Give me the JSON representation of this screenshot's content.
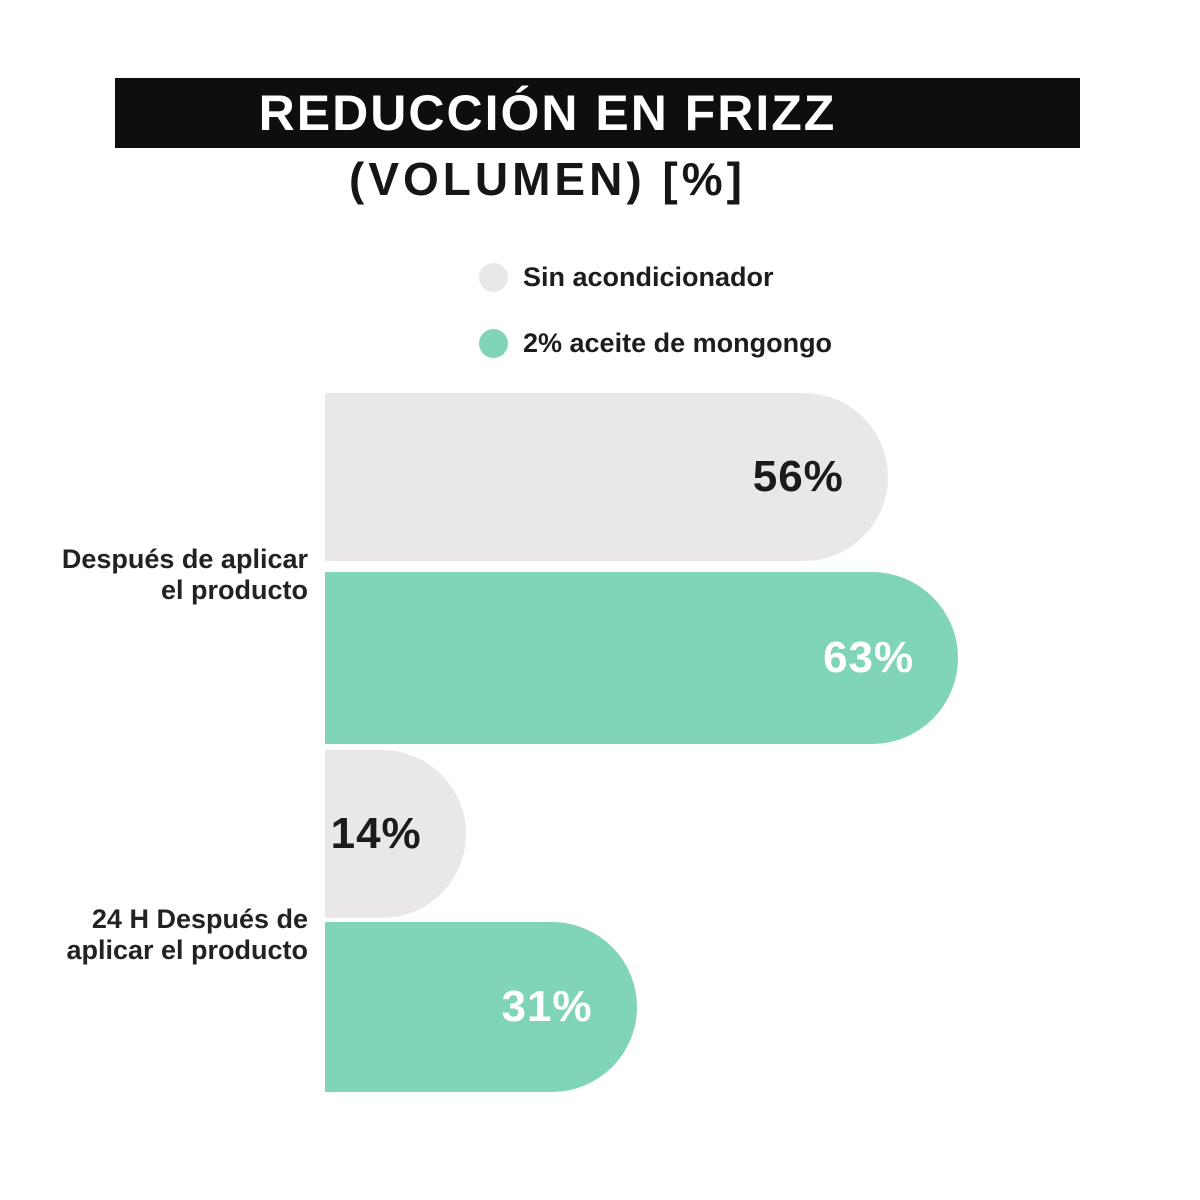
{
  "page": {
    "background": "#ffffff"
  },
  "header": {
    "title": "REDUCCIÓN EN FRIZZ",
    "subtitle": "(VOLUMEN) [%]",
    "banner_bg": "#0e0e0e",
    "title_color": "#ffffff",
    "subtitle_color": "#161616"
  },
  "legend": {
    "items": [
      {
        "label": "Sin acondicionador",
        "color": "#e9e7ea"
      },
      {
        "label": "2% aceite de mongongo",
        "color": "#80d5b8"
      }
    ]
  },
  "chart_data": {
    "type": "bar",
    "orientation": "horizontal",
    "title": "REDUCCIÓN EN FRIZZ (VOLUMEN) [%]",
    "categories": [
      "Después de aplicar el producto",
      "24 H Después de aplicar el producto"
    ],
    "series": [
      {
        "name": "Sin acondicionador",
        "color": "#e9e7ea",
        "values": [
          56,
          14
        ]
      },
      {
        "name": "2% aceite de mongongo",
        "color": "#80d5b8",
        "values": [
          63,
          31
        ]
      }
    ],
    "value_suffix": "%",
    "xlim": [
      0,
      100
    ],
    "grid": false,
    "legend_position": "top"
  },
  "bars": [
    {
      "series": "Sin acondicionador",
      "category": "Después de aplicar el producto",
      "value": 56,
      "label": "56%",
      "color": "#e9e7ea",
      "text_color": "#1b1b1b"
    },
    {
      "series": "2% aceite de mongongo",
      "category": "Después de aplicar el producto",
      "value": 63,
      "label": "63%",
      "color": "#80d5b8",
      "text_color": "#ffffff"
    },
    {
      "series": "Sin acondicionador",
      "category": "24 H Después de aplicar el producto",
      "value": 14,
      "label": "14%",
      "color": "#e9e7ea",
      "text_color": "#1b1b1b"
    },
    {
      "series": "2% aceite de mongongo",
      "category": "24 H Después de aplicar el producto",
      "value": 31,
      "label": "31%",
      "color": "#80d5b8",
      "text_color": "#ffffff"
    }
  ],
  "category_labels": [
    {
      "line1": "Después de aplicar",
      "line2": "el producto"
    },
    {
      "line1": "24 H Después de",
      "line2": "aplicar el producto"
    }
  ]
}
